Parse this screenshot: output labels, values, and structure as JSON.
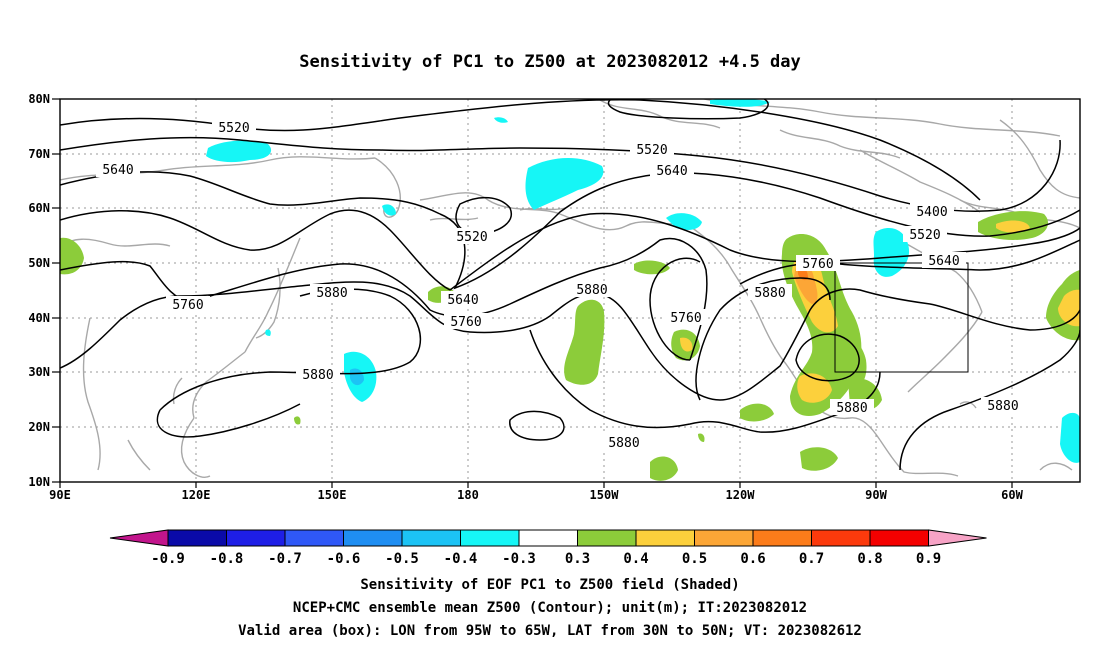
{
  "title": "Sensitivity of PC1 to Z500 at 2023082012 +4.5 day",
  "y_ticks": [
    "80N",
    "70N",
    "60N",
    "50N",
    "40N",
    "30N",
    "20N",
    "10N"
  ],
  "x_ticks": [
    "90E",
    "120E",
    "150E",
    "180",
    "150W",
    "120W",
    "90W",
    "60W"
  ],
  "contour_labels": [
    "5520",
    "5520",
    "5640",
    "5640",
    "5520",
    "5400",
    "5520",
    "5640",
    "5760",
    "5880",
    "5640",
    "5760",
    "5880",
    "5760",
    "5880",
    "5880",
    "5880",
    "5880",
    "5880",
    "5760"
  ],
  "colorbar": {
    "labels": [
      "-0.9",
      "-0.8",
      "-0.7",
      "-0.6",
      "-0.5",
      "-0.4",
      "-0.3",
      "0.3",
      "0.4",
      "0.5",
      "0.6",
      "0.7",
      "0.8",
      "0.9"
    ],
    "colors": [
      "#c2158c",
      "#0a0aa8",
      "#1e1ee6",
      "#2f58f7",
      "#1f8ef2",
      "#1cc3f5",
      "#16f6f6",
      "#ffffff",
      "#8ccc3a",
      "#fcd03c",
      "#fca636",
      "#fc7c1a",
      "#fc3a0c",
      "#f40000",
      "#f7a3c6"
    ]
  },
  "captions": [
    "Sensitivity of EOF PC1 to Z500 field (Shaded)",
    "NCEP+CMC ensemble mean Z500 (Contour); unit(m); IT:2023082012",
    "Valid area (box): LON from 95W to 65W, LAT from 30N to 50N; VT: 2023082612"
  ],
  "valid_box": {
    "lon": [
      -95,
      -65
    ],
    "lat": [
      30,
      50
    ]
  },
  "map_extent": {
    "lon": [
      90,
      315
    ],
    "lat": [
      10,
      80
    ]
  }
}
